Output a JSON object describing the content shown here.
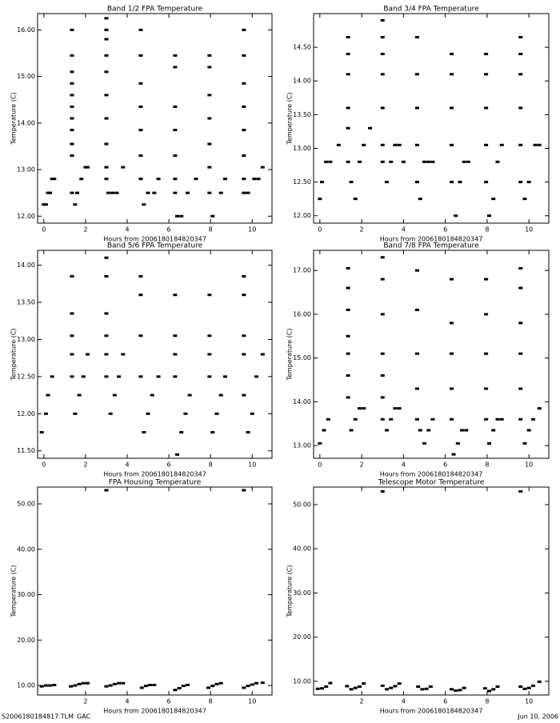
{
  "chart_data": [
    {
      "type": "scatter",
      "title": "Band 1/2 FPA Temperature",
      "xlabel": "Hours from 2006180184820347",
      "ylabel": "Temperature (C)",
      "color": "#000000",
      "xlim": [
        -0.3,
        10.95
      ],
      "xticks": [
        0,
        2,
        4,
        6,
        8,
        10
      ],
      "ylim": [
        11.85,
        16.35
      ],
      "yticks": [
        {
          "value": 12,
          "label": "12.00"
        },
        {
          "value": 13,
          "label": "13.00"
        },
        {
          "value": 14,
          "label": "14.00"
        },
        {
          "value": 15,
          "label": "15.00"
        },
        {
          "value": 16,
          "label": "16.00"
        }
      ],
      "x": [
        0,
        0.1,
        0.2,
        0.3,
        0.4,
        0.5,
        1.5,
        1.6,
        1.8,
        2.0,
        2.1,
        3.1,
        3.3,
        3.5,
        3.8,
        4.8,
        5.0,
        5.3,
        5.5,
        6.4,
        6.6,
        6.9,
        7.3,
        8.1,
        8.5,
        8.7,
        9.8,
        10.1,
        10.3,
        10.5,
        1.35,
        1.35,
        1.35,
        1.35,
        1.35,
        1.35,
        1.35,
        1.35,
        1.35,
        1.35,
        1.35,
        3.0,
        3.0,
        3.0,
        3.0,
        3.0,
        3.0,
        3.0,
        3.0,
        3.0,
        3.0,
        4.65,
        4.65,
        4.65,
        4.65,
        4.65,
        4.65,
        4.65,
        6.3,
        6.3,
        6.3,
        6.3,
        6.3,
        6.3,
        6.3,
        7.95,
        7.95,
        7.95,
        7.95,
        7.95,
        7.95,
        7.95,
        9.6,
        9.6,
        9.6,
        9.6,
        9.6,
        9.6,
        9.6,
        9.6
      ],
      "values": [
        12.25,
        12.25,
        12.5,
        12.5,
        12.8,
        12.8,
        12.25,
        12.5,
        12.8,
        13.05,
        13.05,
        12.5,
        12.5,
        12.5,
        13.05,
        12.25,
        12.5,
        12.5,
        12.8,
        12.0,
        12.0,
        12.5,
        12.8,
        12.0,
        12.5,
        12.8,
        12.5,
        12.8,
        12.8,
        13.05,
        12.5,
        13.3,
        13.55,
        13.85,
        14.1,
        14.35,
        14.6,
        14.85,
        15.1,
        15.45,
        16.0,
        12.8,
        13.05,
        13.55,
        14.1,
        14.6,
        15.1,
        15.45,
        15.8,
        16.0,
        16.25,
        12.8,
        13.3,
        13.85,
        14.35,
        14.85,
        15.45,
        16.0,
        12.5,
        12.8,
        13.3,
        13.85,
        14.35,
        15.2,
        15.45,
        12.5,
        13.05,
        13.55,
        14.1,
        14.6,
        15.2,
        15.45,
        12.5,
        12.8,
        13.3,
        13.85,
        14.35,
        14.85,
        15.45,
        16.0
      ]
    },
    {
      "type": "scatter",
      "title": "Band 3/4 FPA Temperature",
      "xlabel": "Hours from 2006180184820347",
      "ylabel": "Temperature (C)",
      "color": "#000000",
      "xlim": [
        -0.3,
        10.95
      ],
      "xticks": [
        0,
        2,
        4,
        6,
        8,
        10
      ],
      "ylim": [
        11.89,
        15.0
      ],
      "yticks": [
        {
          "value": 12,
          "label": "12.00"
        },
        {
          "value": 12.5,
          "label": "12.50"
        },
        {
          "value": 13,
          "label": "13.00"
        },
        {
          "value": 13.5,
          "label": "13.50"
        },
        {
          "value": 14,
          "label": "14.00"
        },
        {
          "value": 14.5,
          "label": "14.50"
        }
      ],
      "x": [
        0,
        0.1,
        0.3,
        0.5,
        0.9,
        1.5,
        1.7,
        1.9,
        2.1,
        2.4,
        3.2,
        3.4,
        3.6,
        3.8,
        4.0,
        4.8,
        5.0,
        5.2,
        5.4,
        6.5,
        6.7,
        6.9,
        7.1,
        8.1,
        8.3,
        8.5,
        8.7,
        9.8,
        10.0,
        10.3,
        10.5,
        1.35,
        1.35,
        1.35,
        1.35,
        1.35,
        1.35,
        3.0,
        3.0,
        3.0,
        3.0,
        3.0,
        3.0,
        3.0,
        4.65,
        4.65,
        4.65,
        4.65,
        4.65,
        6.3,
        6.3,
        6.3,
        6.3,
        6.3,
        7.95,
        7.95,
        7.95,
        7.95,
        7.95,
        9.6,
        9.6,
        9.6,
        9.6,
        9.6,
        9.6
      ],
      "values": [
        12.25,
        12.5,
        12.8,
        12.8,
        13.05,
        12.5,
        12.25,
        12.8,
        13.05,
        13.3,
        12.5,
        12.8,
        13.05,
        13.05,
        12.8,
        12.25,
        12.8,
        12.8,
        12.8,
        12.0,
        12.5,
        12.8,
        12.8,
        12.0,
        12.25,
        12.8,
        13.05,
        12.25,
        12.5,
        13.05,
        13.05,
        12.8,
        13.3,
        13.6,
        14.1,
        14.4,
        14.65,
        12.8,
        13.05,
        13.6,
        14.1,
        14.4,
        14.65,
        14.9,
        12.5,
        13.05,
        13.6,
        14.1,
        14.65,
        12.5,
        13.05,
        13.6,
        14.1,
        14.4,
        12.5,
        13.05,
        13.6,
        14.1,
        14.4,
        12.5,
        13.05,
        13.6,
        14.1,
        14.4,
        14.65
      ]
    },
    {
      "type": "scatter",
      "title": "Band 5/6 FPA Temperature",
      "xlabel": "Hours from 2006180184820347",
      "ylabel": "Temperature (C)",
      "color": "#000000",
      "xlim": [
        -0.3,
        10.95
      ],
      "xticks": [
        0,
        2,
        4,
        6,
        8,
        10
      ],
      "ylim": [
        11.4,
        14.2
      ],
      "yticks": [
        {
          "value": 11.5,
          "label": "11.50"
        },
        {
          "value": 12,
          "label": "12.00"
        },
        {
          "value": 12.5,
          "label": "12.50"
        },
        {
          "value": 13,
          "label": "13.00"
        },
        {
          "value": 13.5,
          "label": "13.50"
        },
        {
          "value": 14,
          "label": "14.00"
        }
      ],
      "x": [
        -0.1,
        0.1,
        0.2,
        0.4,
        1.5,
        1.7,
        1.9,
        2.1,
        3.2,
        3.4,
        3.6,
        3.8,
        4.8,
        5.0,
        5.2,
        5.5,
        6.4,
        6.6,
        6.8,
        7.0,
        8.1,
        8.3,
        8.5,
        8.7,
        9.8,
        10.0,
        10.2,
        10.5,
        1.35,
        1.35,
        1.35,
        1.35,
        1.35,
        3.0,
        3.0,
        3.0,
        3.0,
        3.0,
        3.0,
        4.65,
        4.65,
        4.65,
        4.65,
        6.3,
        6.3,
        6.3,
        6.3,
        7.95,
        7.95,
        7.95,
        7.95,
        9.6,
        9.6,
        9.6,
        9.6,
        9.6
      ],
      "values": [
        11.75,
        12.0,
        12.25,
        12.5,
        12.0,
        12.25,
        12.5,
        12.8,
        12.0,
        12.25,
        12.5,
        12.8,
        11.75,
        12.0,
        12.25,
        12.5,
        11.45,
        11.75,
        12.0,
        12.25,
        11.75,
        12.0,
        12.25,
        12.5,
        11.75,
        12.0,
        12.5,
        12.8,
        12.5,
        12.8,
        13.05,
        13.35,
        13.85,
        12.5,
        12.8,
        13.05,
        13.35,
        13.85,
        14.1,
        12.5,
        13.05,
        13.6,
        13.85,
        12.5,
        12.8,
        13.05,
        13.6,
        12.5,
        12.8,
        13.05,
        13.6,
        12.25,
        12.8,
        13.05,
        13.6,
        13.85
      ]
    },
    {
      "type": "scatter",
      "title": "Band 7/8 FPA Temperature",
      "xlabel": "Hours from 2006180184820347",
      "ylabel": "Temperature (C)",
      "color": "#000000",
      "xlim": [
        -0.3,
        10.95
      ],
      "xticks": [
        0,
        2,
        4,
        6,
        8,
        10
      ],
      "ylim": [
        12.71,
        17.46
      ],
      "yticks": [
        {
          "value": 13,
          "label": "13.00"
        },
        {
          "value": 14,
          "label": "14.00"
        },
        {
          "value": 15,
          "label": "15.00"
        },
        {
          "value": 16,
          "label": "16.00"
        },
        {
          "value": 17,
          "label": "17.00"
        }
      ],
      "x": [
        0,
        0.2,
        0.4,
        1.5,
        1.7,
        1.9,
        2.1,
        3.2,
        3.4,
        3.6,
        3.8,
        4.8,
        5.0,
        5.2,
        5.4,
        6.4,
        6.6,
        6.8,
        7.0,
        8.1,
        8.3,
        8.5,
        8.7,
        9.8,
        10.0,
        10.2,
        10.5,
        1.35,
        1.35,
        1.35,
        1.35,
        1.35,
        1.35,
        1.35,
        3.0,
        3.0,
        3.0,
        3.0,
        3.0,
        3.0,
        3.0,
        4.65,
        4.65,
        4.65,
        4.65,
        4.65,
        6.3,
        6.3,
        6.3,
        6.3,
        6.3,
        7.95,
        7.95,
        7.95,
        7.95,
        7.95,
        9.6,
        9.6,
        9.6,
        9.6,
        9.6,
        9.6
      ],
      "values": [
        13.05,
        13.35,
        13.6,
        13.35,
        13.6,
        13.85,
        13.85,
        13.35,
        13.6,
        13.85,
        13.85,
        13.35,
        13.05,
        13.35,
        13.6,
        12.8,
        13.05,
        13.35,
        13.35,
        13.05,
        13.35,
        13.6,
        13.6,
        13.05,
        13.35,
        13.6,
        13.85,
        14.1,
        14.6,
        15.1,
        15.5,
        16.1,
        16.6,
        17.05,
        13.6,
        14.1,
        14.6,
        15.1,
        16.0,
        16.8,
        17.3,
        13.6,
        14.3,
        15.1,
        16.1,
        17.0,
        13.6,
        14.3,
        15.1,
        15.8,
        16.8,
        13.6,
        14.3,
        15.1,
        16.0,
        16.8,
        13.6,
        14.3,
        15.1,
        15.8,
        16.6,
        17.05
      ]
    },
    {
      "type": "scatter",
      "title": "FPA Housing Temperature",
      "xlabel": "Hours from 2006180184820347",
      "ylabel": "Temperature (C)",
      "color": "#000000",
      "xlim": [
        -0.3,
        10.95
      ],
      "xticks": [
        2,
        4,
        6,
        8,
        10
      ],
      "ylim": [
        7.9,
        53.7
      ],
      "yticks": [
        {
          "value": 10,
          "label": "10.00"
        },
        {
          "value": 20,
          "label": "20.00"
        },
        {
          "value": 30,
          "label": "30.00"
        },
        {
          "value": 40,
          "label": "40.00"
        },
        {
          "value": 50,
          "label": "50.00"
        }
      ],
      "x": [
        -0.1,
        0.1,
        0.3,
        0.5,
        1.3,
        1.5,
        1.7,
        1.9,
        2.1,
        3.0,
        3.2,
        3.4,
        3.6,
        3.8,
        4.7,
        4.9,
        5.1,
        5.3,
        6.3,
        6.5,
        6.7,
        6.9,
        7.9,
        8.1,
        8.3,
        8.5,
        9.6,
        9.8,
        10.0,
        10.2,
        10.5,
        3.0,
        9.6
      ],
      "values": [
        9.8,
        10.0,
        10.0,
        10.1,
        9.8,
        10.0,
        10.3,
        10.5,
        10.5,
        9.8,
        10.0,
        10.3,
        10.5,
        10.5,
        9.5,
        9.9,
        10.1,
        10.1,
        9.0,
        9.4,
        9.9,
        10.1,
        9.5,
        9.9,
        10.3,
        10.5,
        9.5,
        9.9,
        10.2,
        10.5,
        10.6,
        53.0,
        53.0
      ]
    },
    {
      "type": "scatter",
      "title": "Telescope Motor Temperature",
      "xlabel": "Hours from 2006180184820347",
      "ylabel": "Temperature (C)",
      "color": "#000000",
      "xlim": [
        -0.3,
        10.95
      ],
      "xticks": [
        2,
        4,
        6,
        8,
        10
      ],
      "ylim": [
        6.9,
        53.98
      ],
      "yticks": [
        {
          "value": 10,
          "label": "10.00"
        },
        {
          "value": 20,
          "label": "20.00"
        },
        {
          "value": 30,
          "label": "30.00"
        },
        {
          "value": 40,
          "label": "40.00"
        },
        {
          "value": 50,
          "label": "50.00"
        }
      ],
      "x": [
        -0.1,
        0.1,
        0.3,
        0.5,
        1.3,
        1.5,
        1.7,
        1.9,
        2.1,
        3.0,
        3.2,
        3.4,
        3.6,
        3.8,
        4.7,
        4.9,
        5.1,
        5.3,
        6.3,
        6.5,
        6.7,
        6.9,
        7.9,
        8.1,
        8.3,
        8.5,
        9.6,
        9.8,
        10.0,
        10.2,
        10.5,
        3.0,
        9.6
      ],
      "values": [
        8.3,
        8.4,
        8.8,
        9.6,
        8.9,
        8.2,
        8.5,
        8.8,
        9.5,
        9.0,
        8.2,
        8.5,
        8.9,
        9.5,
        8.8,
        8.2,
        8.3,
        8.8,
        8.2,
        7.9,
        8.0,
        8.5,
        8.4,
        7.8,
        8.2,
        8.8,
        8.8,
        8.3,
        8.5,
        9.0,
        9.9,
        53.0,
        53.0
      ]
    }
  ],
  "footer": {
    "left": "S2006180184817.TLM_GAC",
    "right": "Jun 10, 2006"
  }
}
